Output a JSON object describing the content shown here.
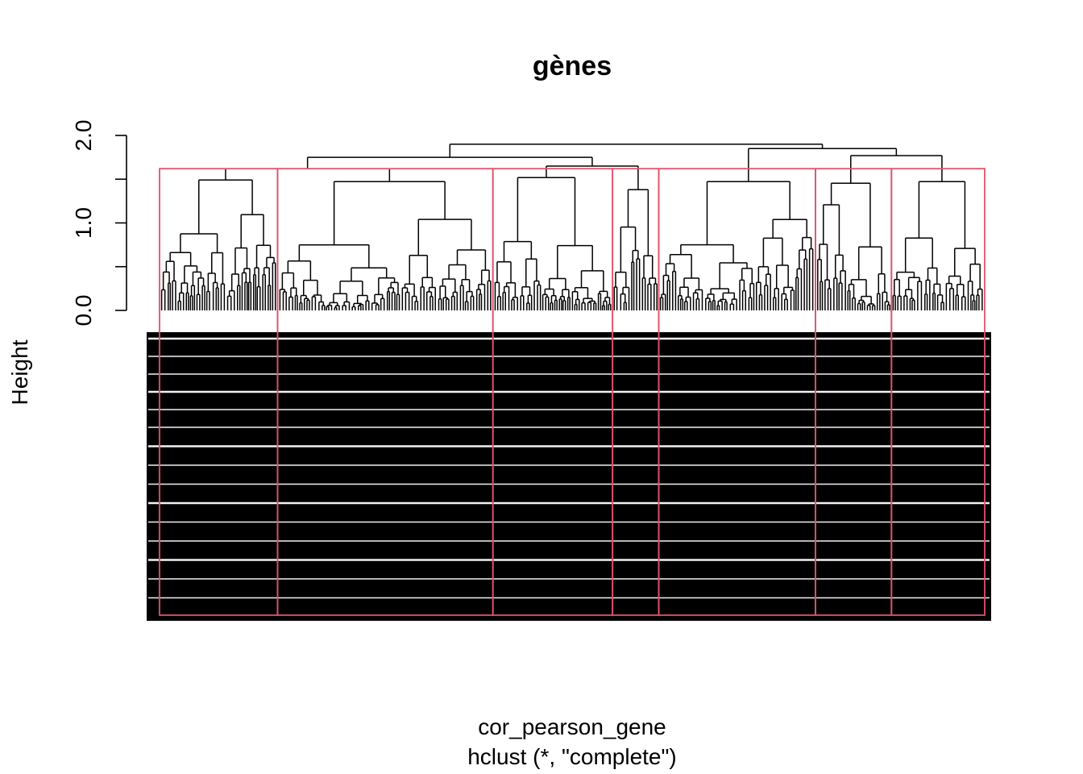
{
  "chart_data": {
    "type": "dendrogram",
    "title": "gènes",
    "ylabel": "Height",
    "xlabel": "cor_pearson_gene",
    "sub": "hclust (*, \"complete\")",
    "ylim": [
      0,
      2.0
    ],
    "yticks": [
      0.0,
      1.0,
      2.0
    ],
    "ytick_labels": [
      "0.0",
      "1.0",
      "2.0"
    ],
    "linkage": "complete",
    "cut_height": 1.62,
    "cluster_box_color": "#DF536B",
    "clusters": [
      {
        "id": 1,
        "leaf_range": [
          0.0,
          0.143
        ],
        "merge_height": 1.62
      },
      {
        "id": 2,
        "leaf_range": [
          0.143,
          0.404
        ],
        "merge_height": 1.6
      },
      {
        "id": 3,
        "leaf_range": [
          0.404,
          0.549
        ],
        "merge_height": 1.65
      },
      {
        "id": 4,
        "leaf_range": [
          0.549,
          0.605
        ],
        "merge_height": 1.5
      },
      {
        "id": 5,
        "leaf_range": [
          0.605,
          0.795
        ],
        "merge_height": 1.6
      },
      {
        "id": 6,
        "leaf_range": [
          0.795,
          0.887
        ],
        "merge_height": 1.58
      },
      {
        "id": 7,
        "leaf_range": [
          0.887,
          1.0
        ],
        "merge_height": 1.6
      }
    ],
    "upper_merges": [
      {
        "children": [
          1,
          2
        ],
        "height": 1.62
      },
      {
        "children": [
          3,
          4
        ],
        "height": 1.65
      },
      {
        "children": [
          "1-2",
          "3-4"
        ],
        "height": 1.75
      },
      {
        "children": [
          6,
          7
        ],
        "height": 1.77
      },
      {
        "children": [
          5,
          "6-7"
        ],
        "height": 1.85
      },
      {
        "children": [
          "1-4",
          "5-7"
        ],
        "height": 1.9
      }
    ]
  }
}
